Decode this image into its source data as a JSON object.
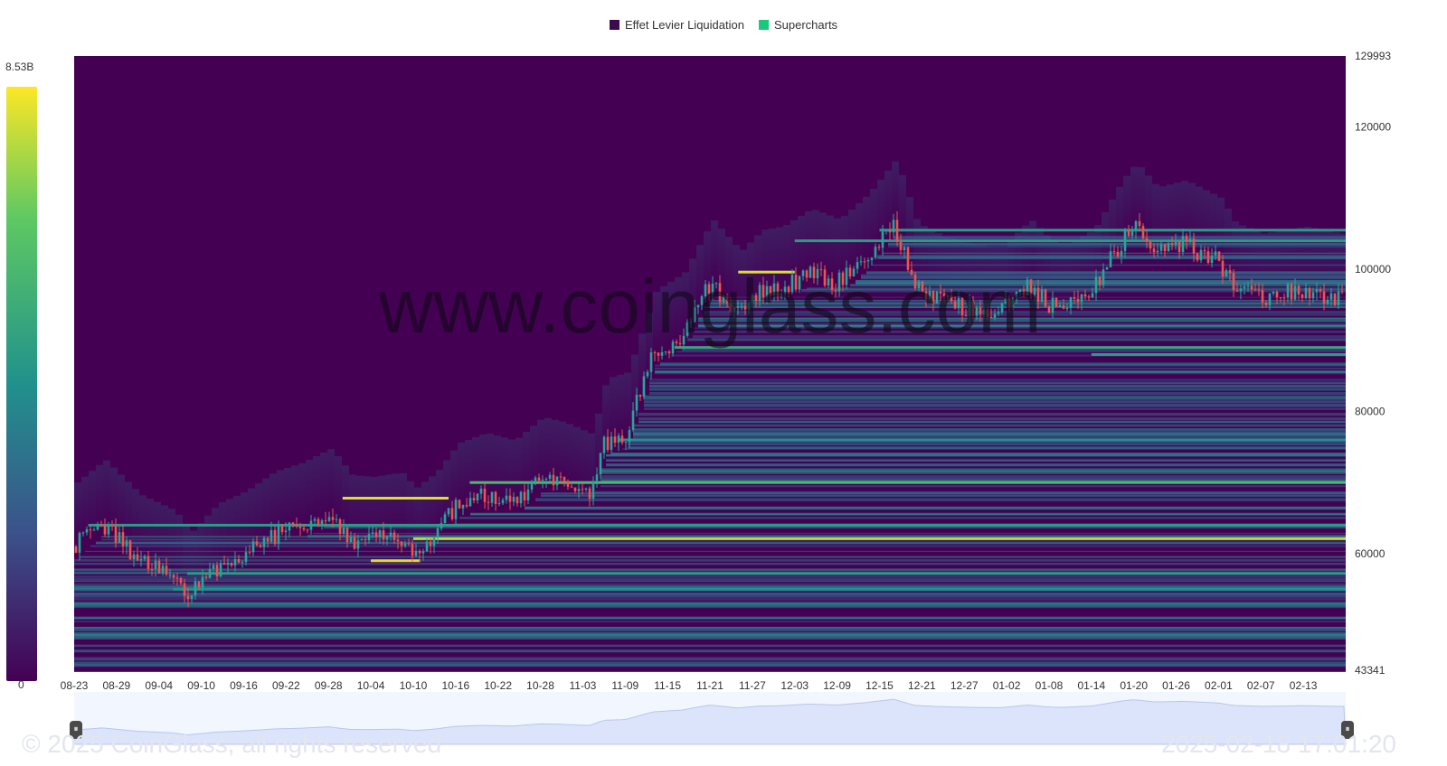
{
  "legend": {
    "items": [
      {
        "label": "Effet Levier Liquidation",
        "color": "#3d0a4f"
      },
      {
        "label": "Supercharts",
        "color": "#18c97a"
      }
    ]
  },
  "colorbar": {
    "max_label": "8.53B",
    "min_label": "0"
  },
  "watermark": "www.coinglass.com",
  "footer": {
    "copyright": "© 2025 CoinGlass, all rights reserved",
    "timestamp": "2025-02-18 17:01:20"
  },
  "slider": {
    "handle_glyph": "⏸"
  },
  "colors": {
    "heat_low": "#440154",
    "heat_mid": "#21918c",
    "heat_high": "#fde725",
    "candle_up": "#26a69a",
    "candle_down": "#ef5350",
    "navigator_fill": "#dbe4fb"
  },
  "chart_data": {
    "type": "heatmap",
    "title": "",
    "xlabel": "",
    "ylabel": "",
    "x_ticks": [
      "08-23",
      "08-29",
      "09-04",
      "09-10",
      "09-16",
      "09-22",
      "09-28",
      "10-04",
      "10-10",
      "10-16",
      "10-22",
      "10-28",
      "11-03",
      "11-09",
      "11-15",
      "11-21",
      "11-27",
      "12-03",
      "12-09",
      "12-15",
      "12-21",
      "12-27",
      "01-02",
      "01-08",
      "01-14",
      "01-20",
      "01-26",
      "02-01",
      "02-07",
      "02-13"
    ],
    "y_ticks": [
      129993,
      120000,
      100000,
      80000,
      60000,
      43341
    ],
    "ylim": [
      43341,
      129993
    ],
    "price_close_series": {
      "name": "Supercharts",
      "x": [
        "08-23",
        "08-27",
        "09-01",
        "09-06",
        "09-08",
        "09-12",
        "09-16",
        "09-20",
        "09-24",
        "09-28",
        "10-01",
        "10-04",
        "10-08",
        "10-10",
        "10-13",
        "10-16",
        "10-20",
        "10-24",
        "10-28",
        "10-31",
        "11-04",
        "11-06",
        "11-09",
        "11-13",
        "11-17",
        "11-21",
        "11-25",
        "11-28",
        "12-01",
        "12-05",
        "12-09",
        "12-13",
        "12-17",
        "12-20",
        "12-24",
        "12-28",
        "01-01",
        "01-05",
        "01-08",
        "01-10",
        "01-14",
        "01-18",
        "01-20",
        "01-23",
        "01-27",
        "02-01",
        "02-03",
        "02-07",
        "02-10",
        "02-13",
        "02-18"
      ],
      "close": [
        61000,
        64200,
        59300,
        57000,
        53800,
        58000,
        59800,
        62500,
        63800,
        65800,
        62000,
        61800,
        62400,
        60200,
        62500,
        66500,
        68000,
        66900,
        70200,
        69500,
        67800,
        75600,
        76500,
        88000,
        90500,
        98000,
        93500,
        96500,
        97000,
        99500,
        98000,
        101500,
        106500,
        97500,
        95500,
        94500,
        94000,
        98000,
        95000,
        94500,
        96500,
        103500,
        106000,
        102500,
        103500,
        101000,
        97500,
        96000,
        96500,
        97000,
        96000
      ]
    },
    "liquidation_levels": [
      {
        "price": 105500,
        "from": "12-15",
        "intensity": 0.55
      },
      {
        "price": 104000,
        "from": "12-03",
        "intensity": 0.55
      },
      {
        "price": 99600,
        "from": "11-25",
        "to": "12-03",
        "intensity": 0.95
      },
      {
        "price": 89000,
        "from": "11-16",
        "intensity": 0.6
      },
      {
        "price": 88000,
        "from": "01-14",
        "intensity": 0.55
      },
      {
        "price": 76000,
        "from": "11-08",
        "intensity": 0.5
      },
      {
        "price": 70000,
        "from": "10-18",
        "intensity": 0.7
      },
      {
        "price": 67800,
        "from": "09-30",
        "to": "10-15",
        "intensity": 0.95
      },
      {
        "price": 64000,
        "from": "08-25",
        "intensity": 0.55
      },
      {
        "price": 62100,
        "from": "10-10",
        "intensity": 0.9
      },
      {
        "price": 59000,
        "from": "10-04",
        "to": "10-11",
        "intensity": 0.95
      },
      {
        "price": 57200,
        "from": "09-08",
        "intensity": 0.55
      },
      {
        "price": 55000,
        "from": "09-06",
        "intensity": 0.5
      }
    ]
  }
}
